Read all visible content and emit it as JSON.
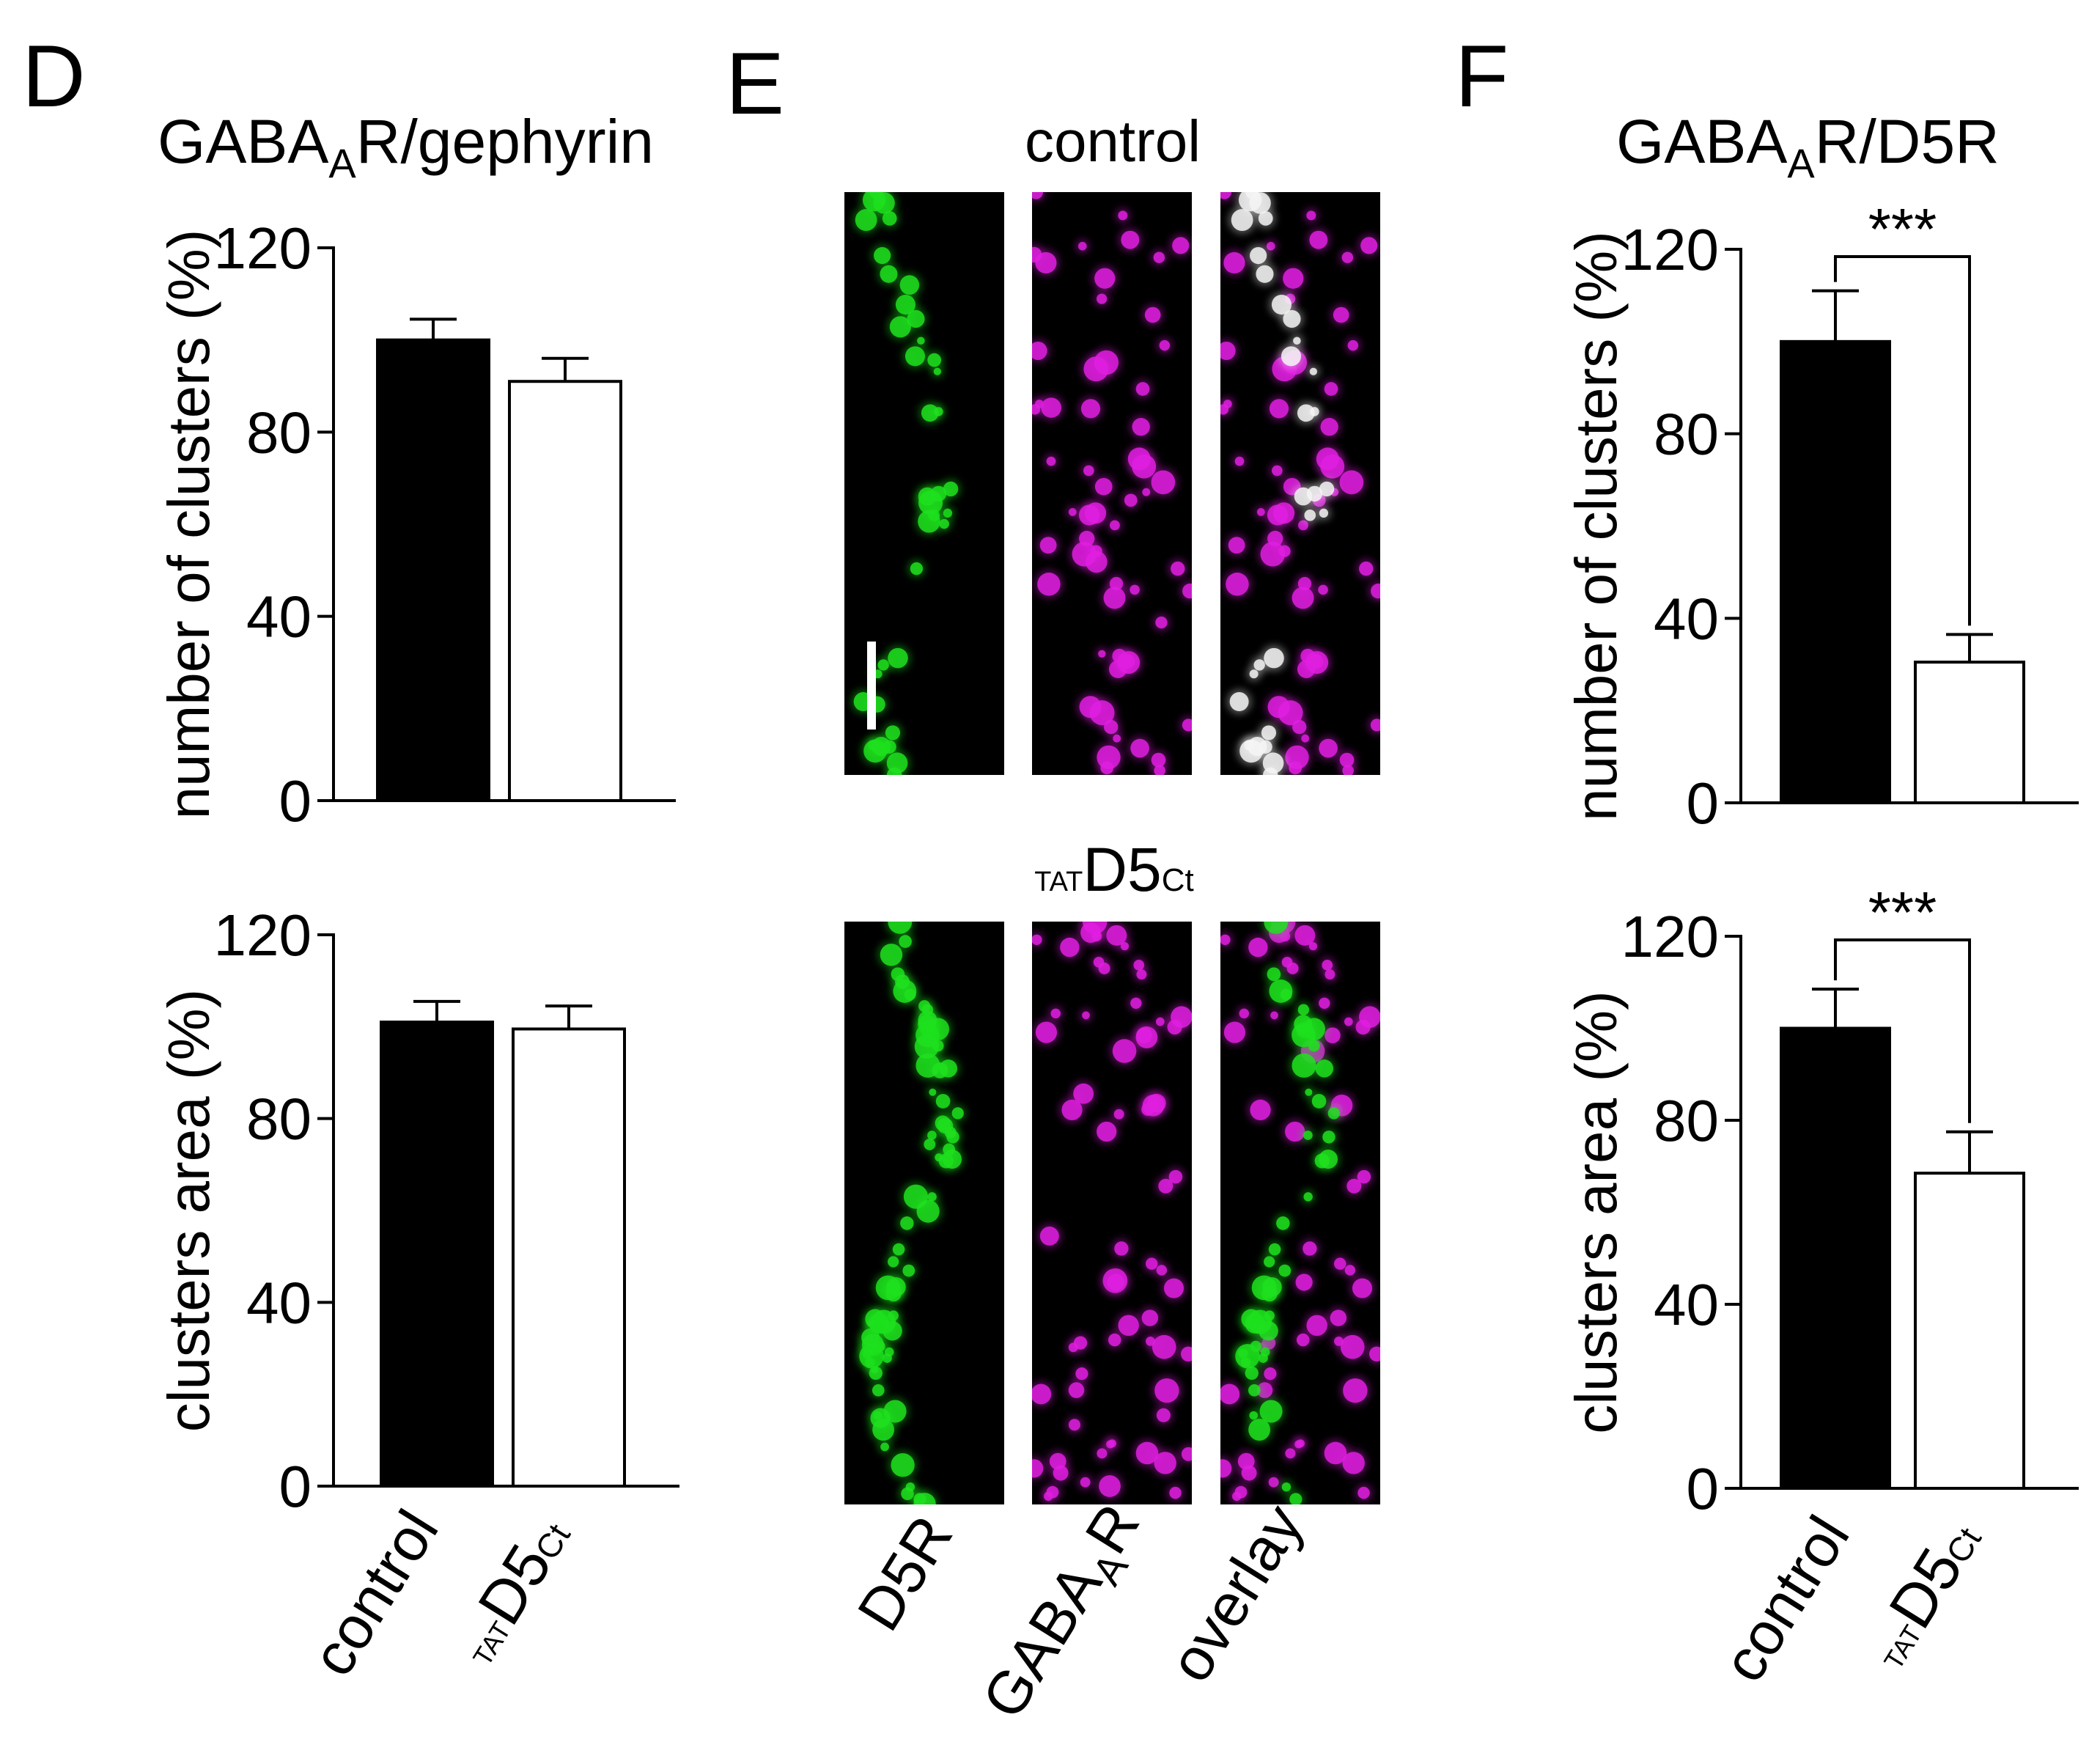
{
  "panels": {
    "D": {
      "letter": "D",
      "title": "GABA",
      "title_sub": "A",
      "title_tail": "R/gephyrin"
    },
    "E": {
      "letter": "E",
      "top_label": "control",
      "mid_label_sub_left": "TAT",
      "mid_label_main": "D5",
      "mid_label_sub_right": "Ct",
      "channels": [
        {
          "label": "D5R",
          "color": "#1ee01e"
        },
        {
          "label": "GABA",
          "label_sub": "A",
          "label_tail": "R",
          "color": "#e01ee0"
        },
        {
          "label": "overlay",
          "color": "#ffffff"
        }
      ]
    },
    "F": {
      "letter": "F",
      "title": "GABA",
      "title_sub": "A",
      "title_tail": "R/D5R"
    }
  },
  "group_labels": {
    "control": "control",
    "tat_sub": "TAT",
    "tat_main": "D5",
    "tat_ct": "Ct"
  },
  "colors": {
    "control_fill": "#000000",
    "treated_fill": "#ffffff",
    "green": "#1ee01e",
    "magenta": "#e01ee0"
  },
  "chart_data": [
    {
      "type": "bar",
      "panel": "D-top",
      "categories": [
        "control",
        "TATD5Ct"
      ],
      "values": [
        100,
        91
      ],
      "errors": [
        4.5,
        5
      ],
      "ylabel": "number of clusters (%)",
      "ylim": [
        0,
        120
      ],
      "yticks": [
        0,
        40,
        80,
        120
      ]
    },
    {
      "type": "bar",
      "panel": "D-bottom",
      "categories": [
        "control",
        "TATD5Ct"
      ],
      "values": [
        101,
        99.5
      ],
      "errors": [
        4.5,
        5
      ],
      "ylabel": "clusters area (%)",
      "ylim": [
        0,
        120
      ],
      "yticks": [
        0,
        40,
        80,
        120
      ]
    },
    {
      "type": "bar",
      "panel": "F-top",
      "categories": [
        "control",
        "TATD5Ct"
      ],
      "values": [
        100,
        30.5
      ],
      "errors": [
        11,
        6
      ],
      "significance": "***",
      "ylabel": "number of clusters (%)",
      "ylim": [
        0,
        120
      ],
      "yticks": [
        0,
        40,
        80,
        120
      ]
    },
    {
      "type": "bar",
      "panel": "F-bottom",
      "categories": [
        "control",
        "TATD5Ct"
      ],
      "values": [
        100,
        68.5
      ],
      "errors": [
        8.5,
        9
      ],
      "significance": "***",
      "ylabel": "clusters area (%)",
      "ylim": [
        0,
        120
      ],
      "yticks": [
        0,
        40,
        80,
        120
      ]
    }
  ]
}
